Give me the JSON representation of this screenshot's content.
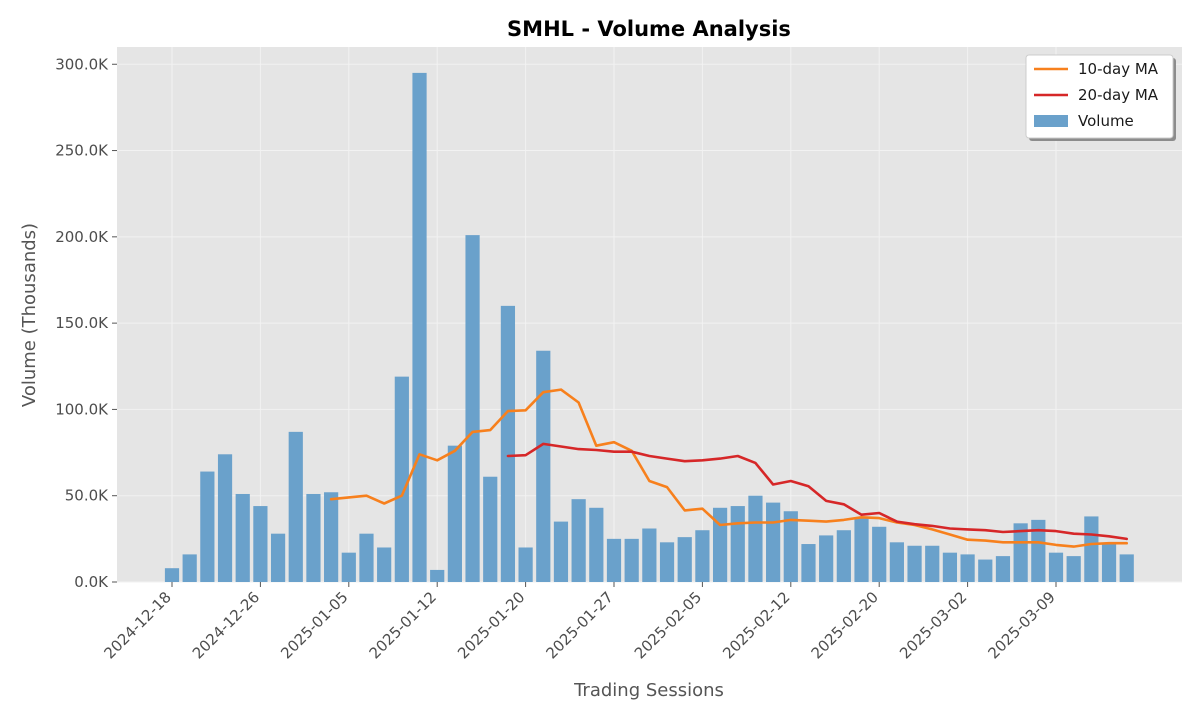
{
  "chart_data": {
    "type": "bar",
    "title": "SMHL - Volume Analysis",
    "xlabel": "Trading Sessions",
    "ylabel": "Volume (Thousands)",
    "ylim": [
      0,
      310000
    ],
    "grid": true,
    "legend_position": "top-right",
    "y_ticks": [
      0,
      50000,
      100000,
      150000,
      200000,
      250000,
      300000
    ],
    "y_tick_labels": [
      "0.0K",
      "50.0K",
      "100.0K",
      "150.0K",
      "200.0K",
      "250.0K",
      "300.0K"
    ],
    "x_tick_labels": [
      "2024-12-18",
      "2024-12-26",
      "2025-01-05",
      "2025-01-12",
      "2025-01-20",
      "2025-01-27",
      "2025-02-05",
      "2025-02-12",
      "2025-02-20",
      "2025-03-02",
      "2025-03-09"
    ],
    "x_tick_sessions": [
      0,
      5,
      10,
      15,
      20,
      25,
      30,
      35,
      40,
      45,
      50
    ],
    "colors": {
      "volume": "#6aa1cb",
      "ma10": "#f7801d",
      "ma20": "#d62728",
      "background": "#e5e5e5",
      "grid": "#f2f2f2"
    },
    "legend": [
      "10-day MA",
      "20-day MA",
      "Volume"
    ],
    "series": [
      {
        "name": "Volume",
        "kind": "bar",
        "values": [
          8000,
          16000,
          64000,
          74000,
          51000,
          44000,
          28000,
          87000,
          51000,
          52000,
          17000,
          28000,
          20000,
          119000,
          295000,
          7000,
          79000,
          201000,
          61000,
          160000,
          20000,
          134000,
          35000,
          48000,
          43000,
          25000,
          25000,
          31000,
          23000,
          26000,
          30000,
          43000,
          44000,
          50000,
          46000,
          41000,
          22000,
          27000,
          30000,
          37000,
          32000,
          23000,
          21000,
          21000,
          17000,
          16000,
          13000,
          15000,
          34000,
          36000,
          17000,
          15000,
          38000,
          22000,
          16000
        ]
      },
      {
        "name": "10-day MA",
        "kind": "line",
        "start": 9,
        "values": [
          48000,
          49000,
          50000,
          45500,
          50000,
          74000,
          70500,
          76000,
          87000,
          88000,
          99000,
          99500,
          110000,
          111500,
          104000,
          79000,
          81000,
          76000,
          58500,
          55000,
          41500,
          42500,
          33000,
          34000,
          34500,
          34500,
          36000,
          35500,
          35000,
          36000,
          37500,
          37000,
          34500,
          33000,
          30500,
          27500,
          24500,
          24000,
          23000,
          23000,
          23000,
          21500,
          20500,
          22000,
          22500,
          22500
        ]
      },
      {
        "name": "20-day MA",
        "kind": "line",
        "start": 19,
        "values": [
          73000,
          73500,
          80000,
          78500,
          77000,
          76500,
          75500,
          75500,
          73000,
          71500,
          70000,
          70500,
          71500,
          73000,
          69000,
          56500,
          58500,
          55500,
          47000,
          45000,
          39000,
          40000,
          35000,
          33500,
          32500,
          31000,
          30500,
          30000,
          29000,
          29500,
          30000,
          29500,
          28000,
          27500,
          26500,
          25000
        ]
      }
    ]
  }
}
